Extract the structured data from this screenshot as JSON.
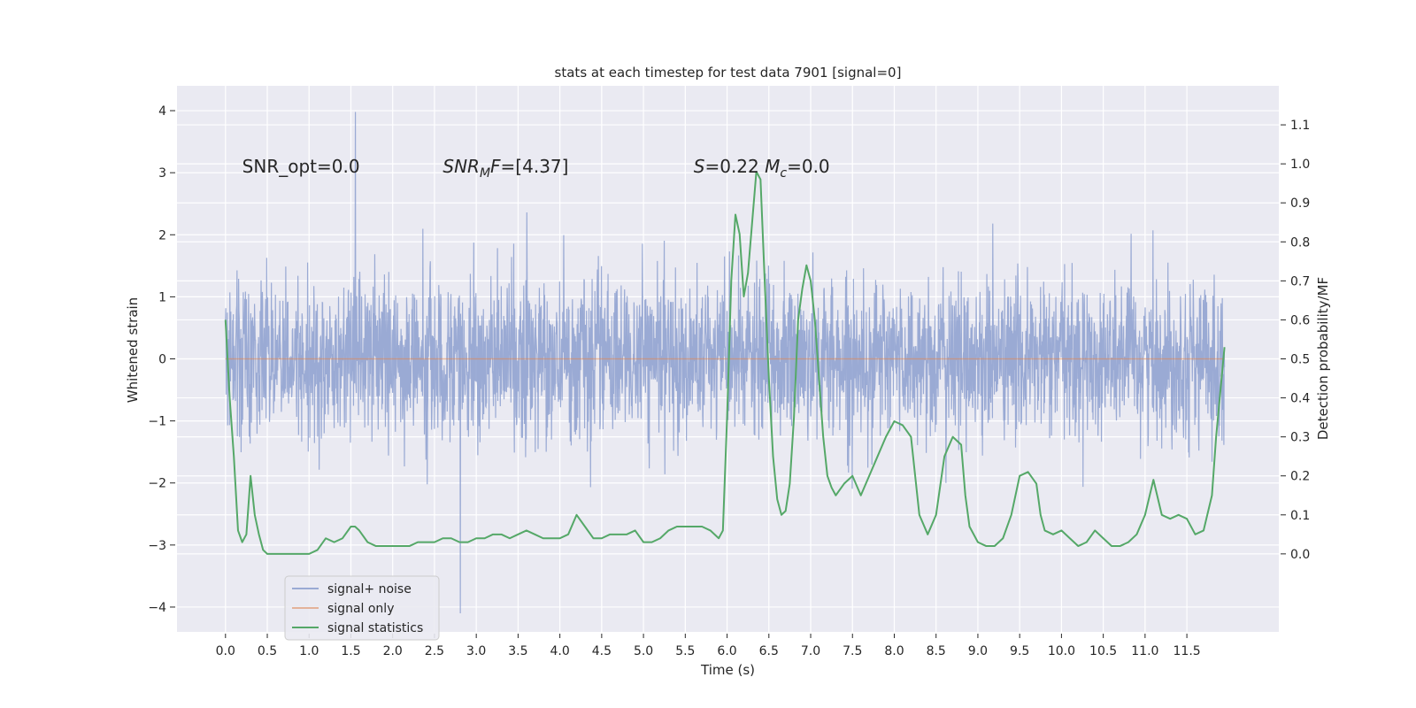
{
  "chart_data": {
    "type": "line",
    "title": "stats at each timestep for test data 7901 [signal=0]",
    "xlabel": "Time (s)",
    "ylabel_left": "Whitened strain",
    "ylabel_right": "Detection probability/MF",
    "xlim": [
      -0.58,
      12.6
    ],
    "ylim_left": [
      -4.4,
      4.4
    ],
    "ylim_right": [
      -0.2,
      1.2
    ],
    "x_ticks": [
      "0.0",
      "0.5",
      "1.0",
      "1.5",
      "2.0",
      "2.5",
      "3.0",
      "3.5",
      "4.0",
      "4.5",
      "5.0",
      "5.5",
      "6.0",
      "6.5",
      "7.0",
      "7.5",
      "8.0",
      "8.5",
      "9.0",
      "9.5",
      "10.0",
      "10.5",
      "11.0",
      "11.5"
    ],
    "y_ticks_left": [
      "−4",
      "−3",
      "−2",
      "−1",
      "0",
      "1",
      "2",
      "3",
      "4"
    ],
    "y_ticks_right": [
      "0.0",
      "0.1",
      "0.2",
      "0.3",
      "0.4",
      "0.5",
      "0.6",
      "0.7",
      "0.8",
      "0.9",
      "1.0",
      "1.1"
    ],
    "grid": true,
    "legend_position": "lower-left",
    "annotations": [
      {
        "parts": [
          {
            "t": "SNR_opt=0.0",
            "i": false
          }
        ],
        "x": 0.2,
        "y": 3.1
      },
      {
        "parts": [
          {
            "t": "SNR",
            "i": true
          },
          {
            "t": "M",
            "i": true,
            "sub": true
          },
          {
            "t": "F",
            "i": true
          },
          {
            "t": "=[4.37]",
            "i": false
          }
        ],
        "x": 2.6,
        "y": 3.1
      },
      {
        "parts": [
          {
            "t": "S",
            "i": true
          },
          {
            "t": "=0.22   ",
            "i": false
          },
          {
            "t": "M",
            "i": true
          },
          {
            "t": "c",
            "i": true,
            "sub": true
          },
          {
            "t": "=0.0",
            "i": false
          }
        ],
        "x": 5.6,
        "y": 3.1
      }
    ],
    "series": [
      {
        "name": "signal+ noise",
        "color": "#8c9fcf",
        "kind": "noise",
        "x_range": [
          0.0,
          11.95
        ],
        "core_sd": 0.62,
        "extreme_max": 3.98,
        "extreme_min": -4.1
      },
      {
        "name": "signal only",
        "color": "#dd8452",
        "kind": "flat",
        "x_range": [
          0.0,
          11.95
        ],
        "value": 0.0
      },
      {
        "name": "signal statistics",
        "color": "#55a868",
        "kind": "line",
        "x": [
          0.0,
          0.05,
          0.1,
          0.15,
          0.2,
          0.25,
          0.3,
          0.35,
          0.4,
          0.45,
          0.5,
          0.6,
          0.7,
          0.8,
          0.9,
          1.0,
          1.1,
          1.2,
          1.3,
          1.4,
          1.5,
          1.55,
          1.6,
          1.7,
          1.8,
          1.9,
          2.0,
          2.1,
          2.2,
          2.3,
          2.4,
          2.5,
          2.6,
          2.7,
          2.8,
          2.9,
          3.0,
          3.1,
          3.2,
          3.3,
          3.4,
          3.5,
          3.6,
          3.7,
          3.8,
          3.9,
          4.0,
          4.1,
          4.2,
          4.3,
          4.4,
          4.5,
          4.6,
          4.7,
          4.8,
          4.9,
          5.0,
          5.1,
          5.2,
          5.3,
          5.4,
          5.5,
          5.6,
          5.7,
          5.8,
          5.9,
          5.95,
          6.0,
          6.05,
          6.1,
          6.15,
          6.2,
          6.25,
          6.3,
          6.35,
          6.4,
          6.45,
          6.5,
          6.55,
          6.6,
          6.65,
          6.7,
          6.75,
          6.8,
          6.85,
          6.9,
          6.95,
          7.0,
          7.05,
          7.1,
          7.15,
          7.2,
          7.25,
          7.3,
          7.4,
          7.5,
          7.6,
          7.7,
          7.8,
          7.9,
          8.0,
          8.1,
          8.2,
          8.25,
          8.3,
          8.4,
          8.5,
          8.6,
          8.7,
          8.8,
          8.85,
          8.9,
          9.0,
          9.1,
          9.2,
          9.3,
          9.4,
          9.5,
          9.6,
          9.7,
          9.75,
          9.8,
          9.9,
          10.0,
          10.1,
          10.2,
          10.3,
          10.4,
          10.5,
          10.6,
          10.7,
          10.8,
          10.9,
          11.0,
          11.1,
          11.2,
          11.3,
          11.4,
          11.5,
          11.6,
          11.7,
          11.8,
          11.85,
          11.95
        ],
        "y": [
          0.6,
          0.4,
          0.25,
          0.06,
          0.03,
          0.05,
          0.2,
          0.1,
          0.05,
          0.01,
          0.0,
          0.0,
          0.0,
          0.0,
          0.0,
          0.0,
          0.01,
          0.04,
          0.03,
          0.04,
          0.07,
          0.07,
          0.06,
          0.03,
          0.02,
          0.02,
          0.02,
          0.02,
          0.02,
          0.03,
          0.03,
          0.03,
          0.04,
          0.04,
          0.03,
          0.03,
          0.04,
          0.04,
          0.05,
          0.05,
          0.04,
          0.05,
          0.06,
          0.05,
          0.04,
          0.04,
          0.04,
          0.05,
          0.1,
          0.07,
          0.04,
          0.04,
          0.05,
          0.05,
          0.05,
          0.06,
          0.03,
          0.03,
          0.04,
          0.06,
          0.07,
          0.07,
          0.07,
          0.07,
          0.06,
          0.04,
          0.06,
          0.35,
          0.7,
          0.87,
          0.82,
          0.66,
          0.72,
          0.85,
          0.98,
          0.96,
          0.7,
          0.45,
          0.25,
          0.14,
          0.1,
          0.11,
          0.18,
          0.35,
          0.6,
          0.68,
          0.74,
          0.7,
          0.6,
          0.45,
          0.3,
          0.2,
          0.17,
          0.15,
          0.18,
          0.2,
          0.15,
          0.2,
          0.25,
          0.3,
          0.34,
          0.33,
          0.3,
          0.2,
          0.1,
          0.05,
          0.1,
          0.25,
          0.3,
          0.28,
          0.15,
          0.07,
          0.03,
          0.02,
          0.02,
          0.04,
          0.1,
          0.2,
          0.21,
          0.18,
          0.1,
          0.06,
          0.05,
          0.06,
          0.04,
          0.02,
          0.03,
          0.06,
          0.04,
          0.02,
          0.02,
          0.03,
          0.05,
          0.1,
          0.19,
          0.1,
          0.09,
          0.1,
          0.09,
          0.05,
          0.06,
          0.15,
          0.3,
          0.53
        ]
      }
    ]
  }
}
